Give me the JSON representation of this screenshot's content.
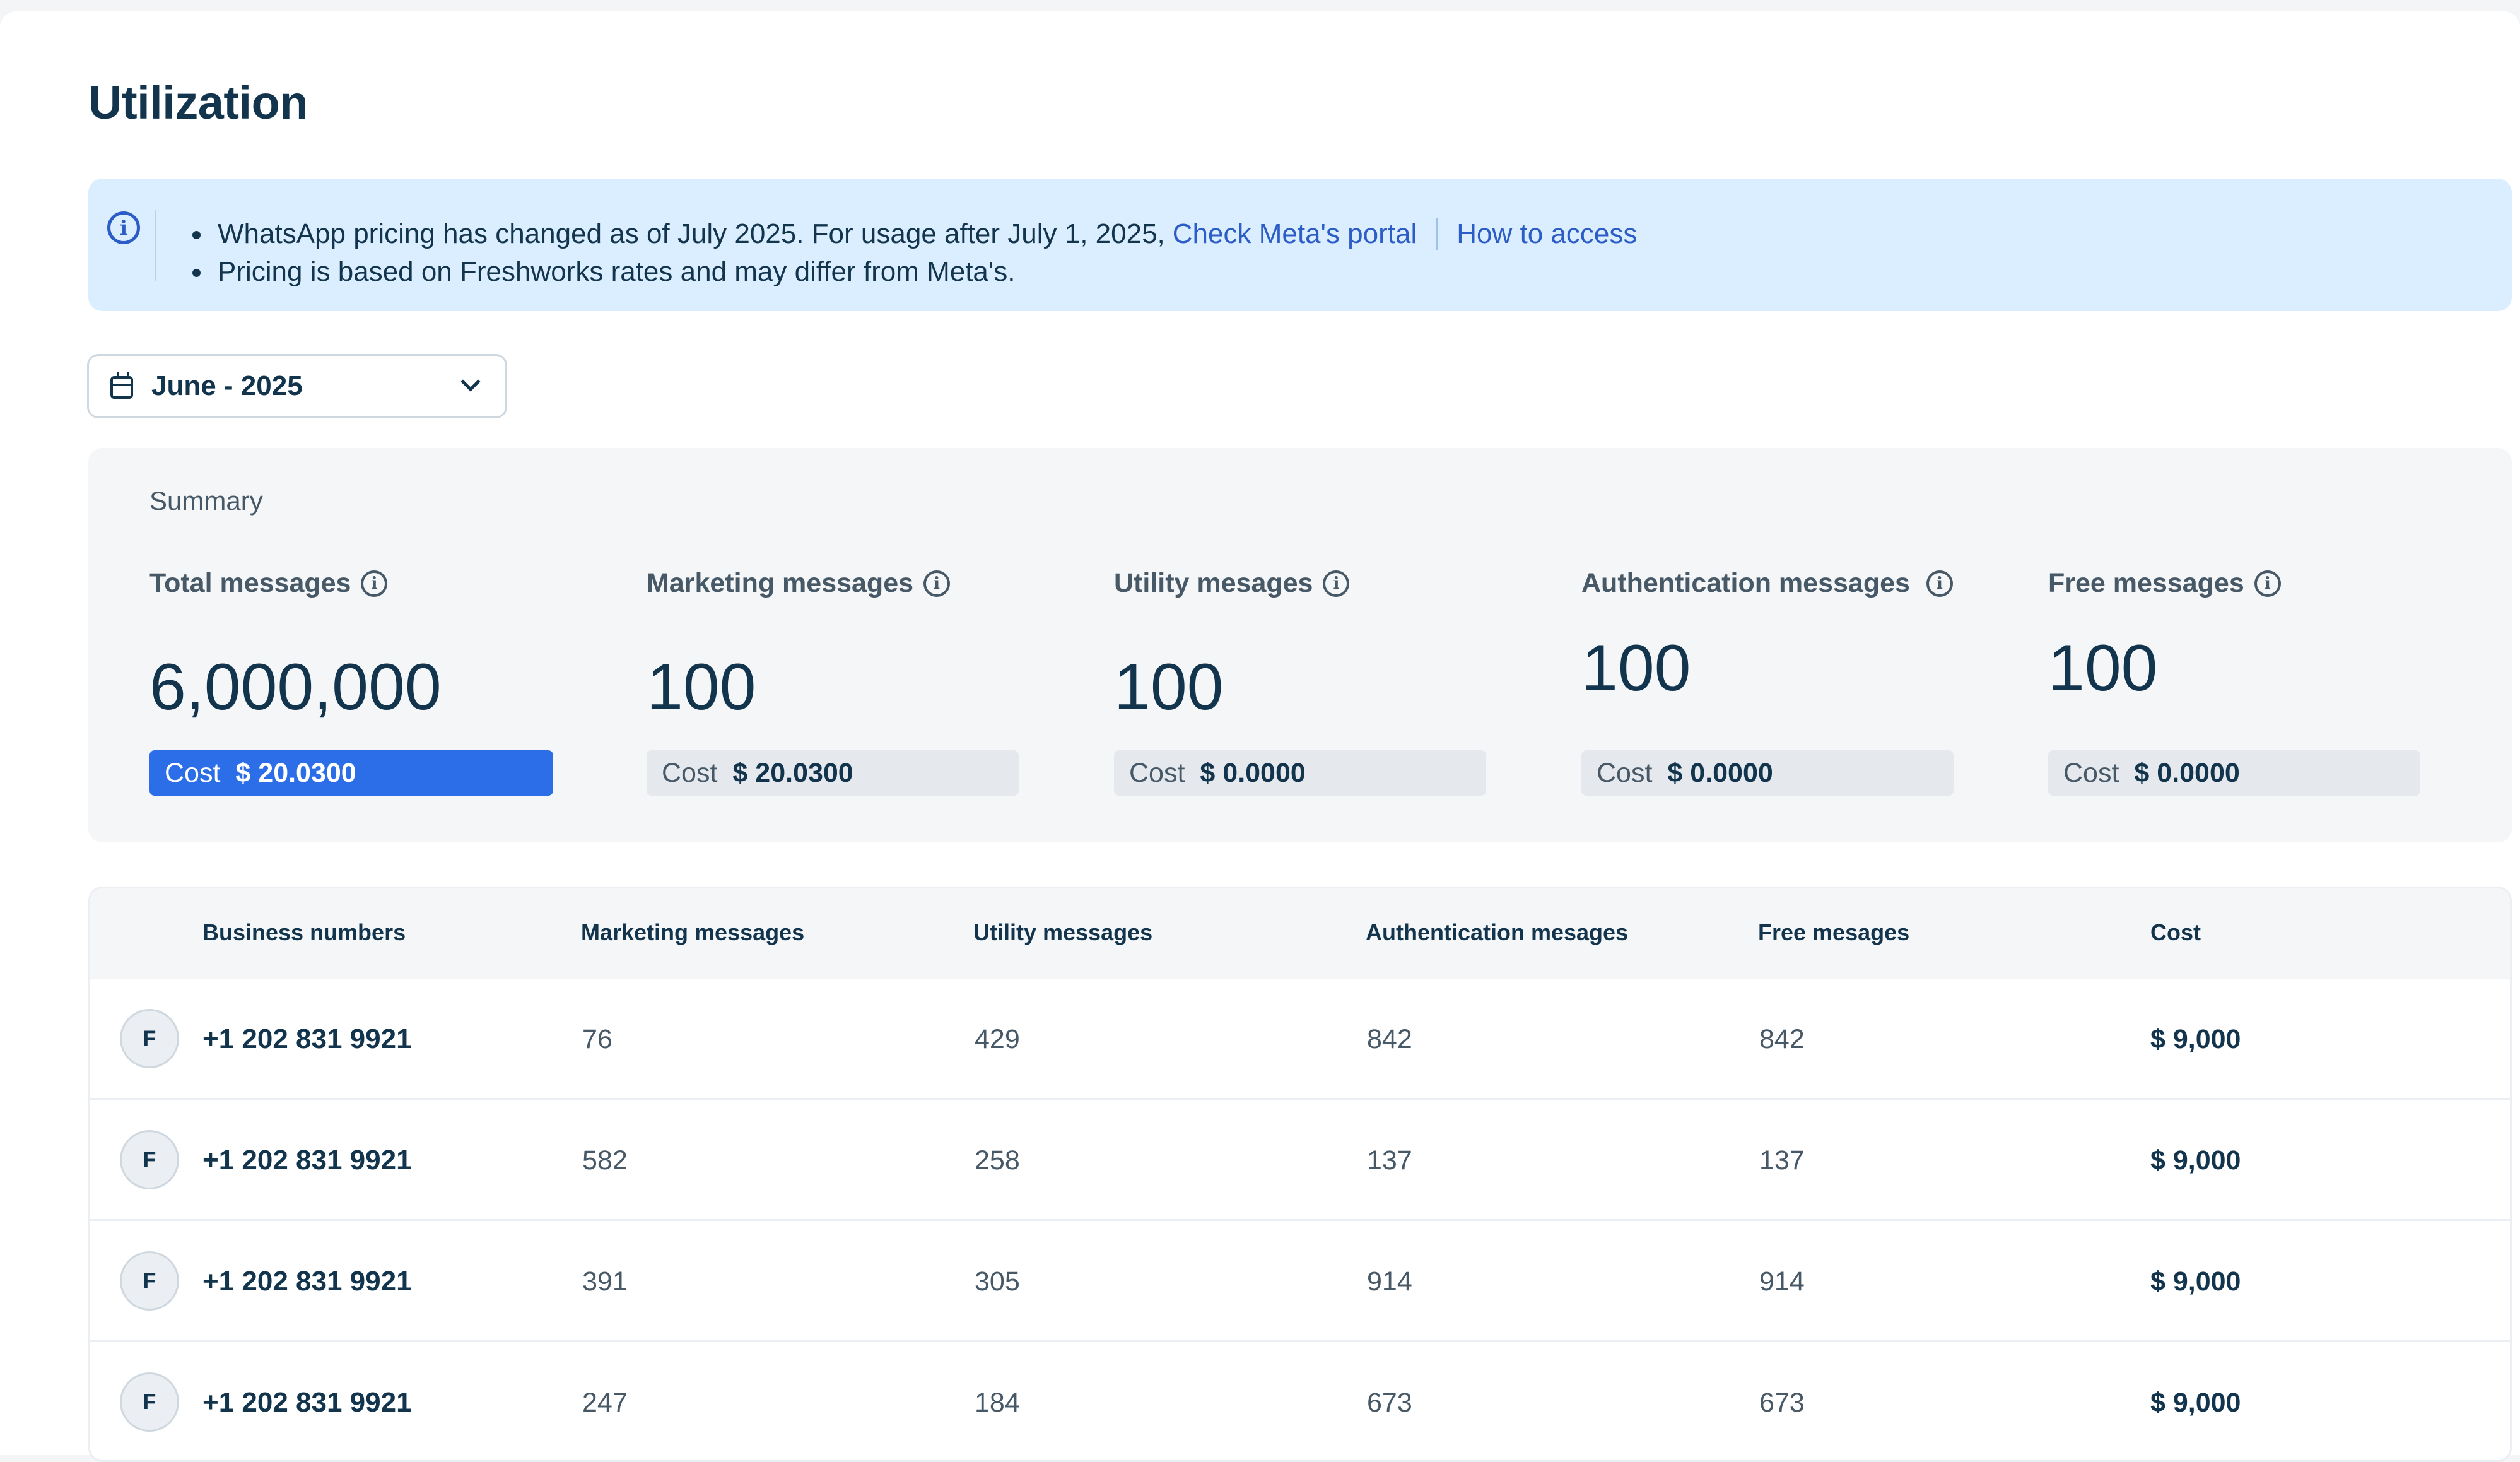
{
  "page": {
    "title": "Utilization"
  },
  "banner": {
    "line1_text": "WhatsApp pricing has changed as of July 2025. For usage after July 1, 2025,",
    "line1_link": "Check Meta's portal",
    "line1_link2": "How to access",
    "line2_text": "Pricing is based on Freshworks rates and may differ from Meta's.",
    "icon": "info-icon",
    "bg_color": "#dbeeff",
    "link_color": "#2c5cc5"
  },
  "filter": {
    "month": "June - 2025",
    "icon": "calendar-icon",
    "dropdown_icon": "chevron-down-icon"
  },
  "summary": {
    "label": "Summary",
    "cost_word": "Cost",
    "metrics": [
      {
        "label": "Total messages",
        "value": "6,000,000",
        "cost": "$ 20.0300",
        "highlighted": true
      },
      {
        "label": "Marketing messages",
        "value": "100",
        "cost": "$ 20.0300",
        "highlighted": false
      },
      {
        "label": "Utility mesages",
        "value": "100",
        "cost": "$ 0.0000",
        "highlighted": false
      },
      {
        "label": "Authentication messages",
        "value": "100",
        "cost": "$ 0.0000",
        "highlighted": false
      },
      {
        "label": "Free messages",
        "value": "100",
        "cost": "$ 0.0000",
        "highlighted": false
      }
    ],
    "accent_color": "#2c6ee8"
  },
  "table": {
    "columns": [
      "Business numbers",
      "Marketing messages",
      "Utility messages",
      "Authentication mesages",
      "Free mesages",
      "Cost"
    ],
    "rows": [
      {
        "avatar": "F",
        "number": "+1 202 831 9921",
        "marketing": "76",
        "utility": "429",
        "authentication": "842",
        "free": "842",
        "cost": "$ 9,000"
      },
      {
        "avatar": "F",
        "number": "+1 202 831 9921",
        "marketing": "582",
        "utility": "258",
        "authentication": "137",
        "free": "137",
        "cost": "$ 9,000"
      },
      {
        "avatar": "F",
        "number": "+1 202 831 9921",
        "marketing": "391",
        "utility": "305",
        "authentication": "914",
        "free": "914",
        "cost": "$ 9,000"
      },
      {
        "avatar": "F",
        "number": "+1 202 831 9921",
        "marketing": "247",
        "utility": "184",
        "authentication": "673",
        "free": "673",
        "cost": "$ 9,000"
      }
    ]
  }
}
